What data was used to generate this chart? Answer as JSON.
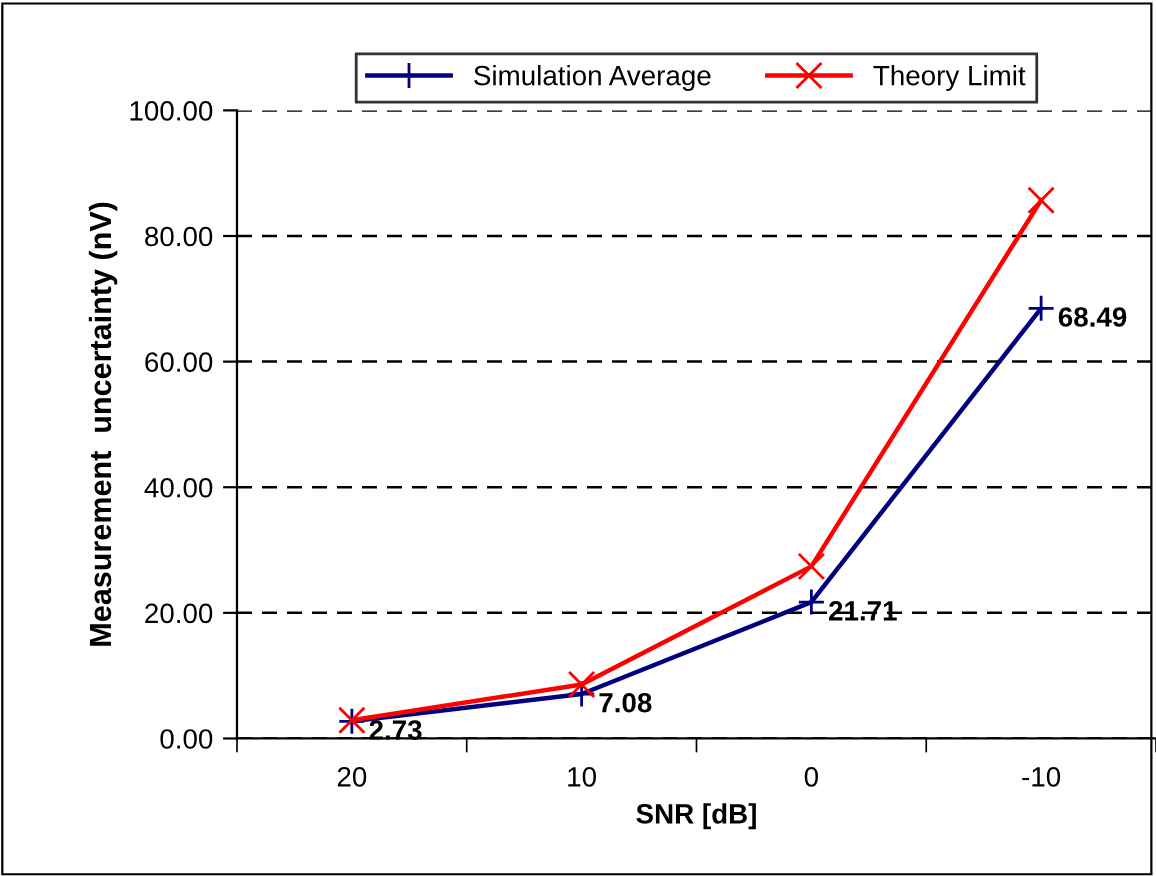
{
  "chart_data": {
    "type": "line",
    "xlabel": "SNR [dB]",
    "ylabel": "Measurement  uncertainty (nV)",
    "categories": [
      "20",
      "10",
      "0",
      "-10"
    ],
    "series": [
      {
        "name": "Simulation Average",
        "color": "#000080",
        "marker": "plus",
        "values": [
          2.73,
          7.08,
          21.71,
          68.49
        ],
        "value_labels": [
          "2.73",
          "7.08",
          "21.71",
          "68.49"
        ]
      },
      {
        "name": "Theory Limit",
        "color": "#ff0000",
        "marker": "cross",
        "values": [
          2.9,
          8.6,
          27.4,
          85.7
        ]
      }
    ],
    "ylim": [
      0,
      100
    ],
    "yticks": [
      {
        "value": 0,
        "label": "0.00"
      },
      {
        "value": 20,
        "label": "20.00"
      },
      {
        "value": 40,
        "label": "40.00"
      },
      {
        "value": 60,
        "label": "60.00"
      },
      {
        "value": 80,
        "label": "80.00"
      },
      {
        "value": 100,
        "label": "100.00"
      }
    ],
    "grid": "y",
    "legend": "top",
    "line_style": "solid"
  }
}
